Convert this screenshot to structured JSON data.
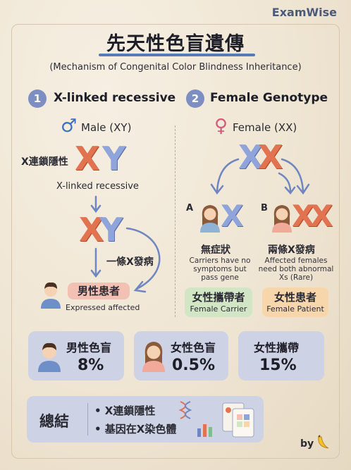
{
  "brand": "ExamWise",
  "title": "先天性色盲遺傳",
  "subtitle": "(Mechanism of Congenital Color Blindness Inheritance)",
  "section1": {
    "number": "1",
    "title": "X-linked recessive",
    "sex_label": "Male (XY)",
    "recessive_label": "X連鎖隱性",
    "recessive_en": "X-linked recessive",
    "single_label": "一條X發病",
    "result": "男性患者",
    "result_en": "Expressed affected",
    "x": "X",
    "y": "Y"
  },
  "section2": {
    "number": "2",
    "title": "Female Genotype",
    "sex_label": "Female (XX)",
    "x": "X",
    "case_a": {
      "letter": "A",
      "title": "無症狀",
      "desc": [
        "Carriers have no",
        "symptoms but",
        "pass gene"
      ],
      "result": "女性攜帶者",
      "result_en": "Female Carrier"
    },
    "case_b": {
      "letter": "B",
      "title": "兩條X發病",
      "desc": [
        "Affected females",
        "need both abnormal",
        "Xs (Rare)"
      ],
      "result": "女性患者",
      "result_en": "Female Patient"
    }
  },
  "stats": [
    {
      "label": "男性色盲",
      "value": "8%",
      "icon": "male-avatar-icon"
    },
    {
      "label": "女性色盲",
      "value": "0.5%",
      "icon": "female-avatar-icon"
    },
    {
      "label": "女性攜帶",
      "value": "15%"
    }
  ],
  "summary": {
    "title": "總結",
    "items": [
      "• X連鎖隱性",
      "• 基因在X染色體"
    ]
  },
  "footer": {
    "by": "by"
  },
  "colors": {
    "accent": "#7d8fc2",
    "x_chromosome": "#e27350",
    "y_chromosome": "#8fa4da",
    "card": "#cdd2e4"
  }
}
